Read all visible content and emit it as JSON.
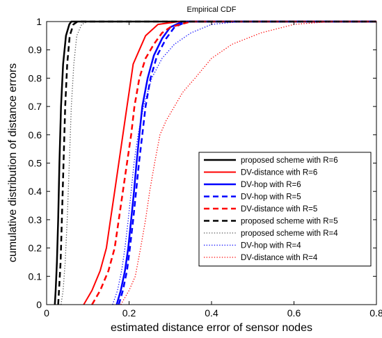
{
  "chart_data": {
    "type": "line",
    "title": "Empirical CDF",
    "xlabel": "estimated distance error of sensor nodes",
    "ylabel": "cumulative distribution of distance errors",
    "xlim": [
      0,
      0.8
    ],
    "ylim": [
      0,
      1
    ],
    "xticks": [
      "0",
      "0.2",
      "0.4",
      "0.6",
      "0.8"
    ],
    "yticks": [
      "0",
      "0.1",
      "0.2",
      "0.3",
      "0.4",
      "0.5",
      "0.6",
      "0.7",
      "0.8",
      "0.9",
      "1"
    ],
    "legend_position": "lower-right",
    "grid": false,
    "series": [
      {
        "name": "proposed scheme with R=6",
        "color": "#000000",
        "style": "solid",
        "width": 2.5,
        "points": [
          [
            0.02,
            0
          ],
          [
            0.022,
            0.05
          ],
          [
            0.025,
            0.15
          ],
          [
            0.028,
            0.3
          ],
          [
            0.031,
            0.5
          ],
          [
            0.035,
            0.7
          ],
          [
            0.04,
            0.85
          ],
          [
            0.047,
            0.95
          ],
          [
            0.055,
            0.99
          ],
          [
            0.06,
            1
          ]
        ]
      },
      {
        "name": "DV-distance with R=6",
        "color": "#ff0000",
        "style": "solid",
        "width": 2,
        "points": [
          [
            0.09,
            0
          ],
          [
            0.11,
            0.05
          ],
          [
            0.13,
            0.12
          ],
          [
            0.145,
            0.2
          ],
          [
            0.155,
            0.3
          ],
          [
            0.165,
            0.4
          ],
          [
            0.175,
            0.5
          ],
          [
            0.185,
            0.6
          ],
          [
            0.195,
            0.7
          ],
          [
            0.2,
            0.75
          ],
          [
            0.21,
            0.85
          ],
          [
            0.225,
            0.9
          ],
          [
            0.24,
            0.95
          ],
          [
            0.27,
            0.99
          ],
          [
            0.32,
            1
          ]
        ]
      },
      {
        "name": "DV-hop with R=6",
        "color": "#0000ff",
        "style": "solid",
        "width": 2.5,
        "points": [
          [
            0.17,
            0
          ],
          [
            0.18,
            0.05
          ],
          [
            0.19,
            0.12
          ],
          [
            0.198,
            0.2
          ],
          [
            0.205,
            0.3
          ],
          [
            0.212,
            0.4
          ],
          [
            0.218,
            0.5
          ],
          [
            0.225,
            0.6
          ],
          [
            0.232,
            0.7
          ],
          [
            0.245,
            0.8
          ],
          [
            0.26,
            0.88
          ],
          [
            0.28,
            0.94
          ],
          [
            0.3,
            0.98
          ],
          [
            0.33,
            1
          ]
        ]
      },
      {
        "name": "DV-hop with R=5",
        "color": "#0000ff",
        "style": "dashed",
        "width": 2.5,
        "points": [
          [
            0.175,
            0
          ],
          [
            0.185,
            0.05
          ],
          [
            0.195,
            0.12
          ],
          [
            0.202,
            0.2
          ],
          [
            0.21,
            0.3
          ],
          [
            0.217,
            0.4
          ],
          [
            0.224,
            0.5
          ],
          [
            0.232,
            0.6
          ],
          [
            0.24,
            0.7
          ],
          [
            0.252,
            0.8
          ],
          [
            0.268,
            0.88
          ],
          [
            0.29,
            0.94
          ],
          [
            0.31,
            0.98
          ],
          [
            0.34,
            1
          ]
        ]
      },
      {
        "name": "DV-distance with R=5",
        "color": "#ff0000",
        "style": "dashed",
        "width": 2.5,
        "points": [
          [
            0.11,
            0
          ],
          [
            0.13,
            0.05
          ],
          [
            0.15,
            0.12
          ],
          [
            0.165,
            0.2
          ],
          [
            0.175,
            0.3
          ],
          [
            0.185,
            0.4
          ],
          [
            0.195,
            0.5
          ],
          [
            0.205,
            0.6
          ],
          [
            0.213,
            0.7
          ],
          [
            0.225,
            0.8
          ],
          [
            0.24,
            0.87
          ],
          [
            0.26,
            0.92
          ],
          [
            0.28,
            0.96
          ],
          [
            0.3,
            0.98
          ],
          [
            0.35,
            1
          ]
        ]
      },
      {
        "name": "proposed scheme with R=5",
        "color": "#000000",
        "style": "dashed",
        "width": 2.5,
        "points": [
          [
            0.028,
            0
          ],
          [
            0.03,
            0.05
          ],
          [
            0.034,
            0.15
          ],
          [
            0.037,
            0.3
          ],
          [
            0.041,
            0.5
          ],
          [
            0.045,
            0.7
          ],
          [
            0.05,
            0.85
          ],
          [
            0.056,
            0.95
          ],
          [
            0.065,
            0.99
          ],
          [
            0.075,
            1
          ]
        ]
      },
      {
        "name": "proposed scheme with R=4",
        "color": "#555555",
        "style": "dotted",
        "width": 1.3,
        "points": [
          [
            0.035,
            0
          ],
          [
            0.04,
            0.05
          ],
          [
            0.045,
            0.15
          ],
          [
            0.05,
            0.3
          ],
          [
            0.055,
            0.5
          ],
          [
            0.06,
            0.7
          ],
          [
            0.066,
            0.85
          ],
          [
            0.073,
            0.95
          ],
          [
            0.085,
            0.99
          ],
          [
            0.1,
            1
          ]
        ]
      },
      {
        "name": "DV-hop with R=4",
        "color": "#0000ff",
        "style": "dotted",
        "width": 1.3,
        "points": [
          [
            0.16,
            0
          ],
          [
            0.172,
            0.05
          ],
          [
            0.182,
            0.12
          ],
          [
            0.19,
            0.2
          ],
          [
            0.198,
            0.3
          ],
          [
            0.205,
            0.4
          ],
          [
            0.212,
            0.5
          ],
          [
            0.222,
            0.6
          ],
          [
            0.235,
            0.7
          ],
          [
            0.255,
            0.8
          ],
          [
            0.28,
            0.87
          ],
          [
            0.31,
            0.92
          ],
          [
            0.35,
            0.96
          ],
          [
            0.4,
            0.99
          ],
          [
            0.47,
            1
          ]
        ]
      },
      {
        "name": "DV-distance with R=4",
        "color": "#ff0000",
        "style": "dotted",
        "width": 1.3,
        "points": [
          [
            0.18,
            0
          ],
          [
            0.2,
            0.05
          ],
          [
            0.215,
            0.1
          ],
          [
            0.228,
            0.2
          ],
          [
            0.24,
            0.3
          ],
          [
            0.25,
            0.4
          ],
          [
            0.262,
            0.5
          ],
          [
            0.275,
            0.6
          ],
          [
            0.29,
            0.65
          ],
          [
            0.31,
            0.7
          ],
          [
            0.33,
            0.75
          ],
          [
            0.36,
            0.8
          ],
          [
            0.4,
            0.87
          ],
          [
            0.45,
            0.92
          ],
          [
            0.52,
            0.96
          ],
          [
            0.6,
            0.99
          ],
          [
            0.69,
            1
          ]
        ]
      }
    ]
  }
}
